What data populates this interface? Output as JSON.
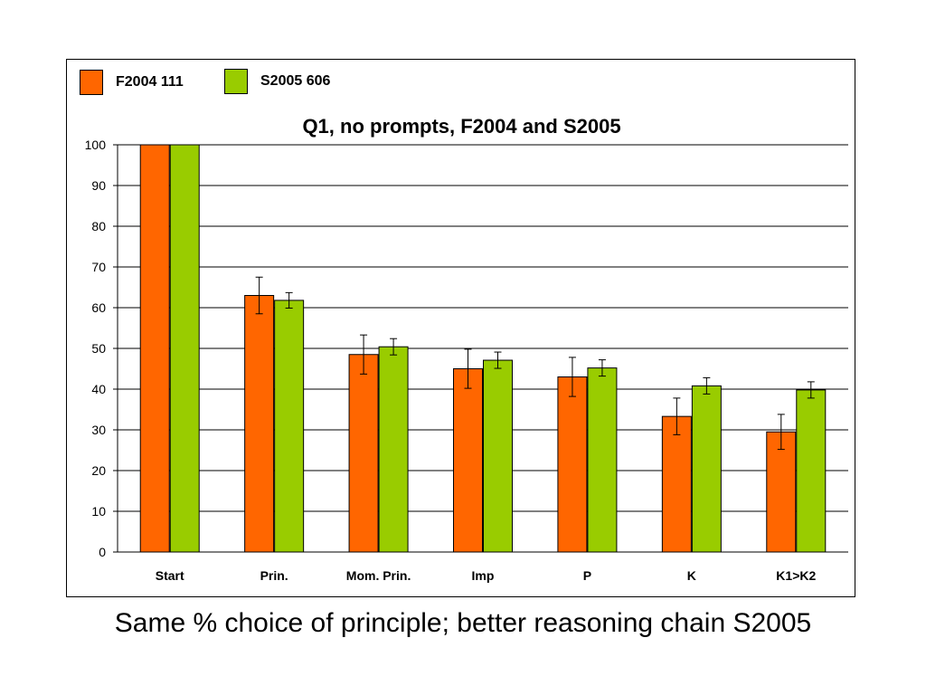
{
  "caption": "Same % choice of principle; better reasoning chain S2005",
  "chart_data": {
    "type": "bar",
    "title": "Q1, no prompts, F2004 and S2005",
    "xlabel": "",
    "ylabel": "",
    "ylim": [
      0,
      100
    ],
    "yticks": [
      0,
      10,
      20,
      30,
      40,
      50,
      60,
      70,
      80,
      90,
      100
    ],
    "grid": true,
    "legend_position": "top-left",
    "categories": [
      "Start",
      "Prin.",
      "Mom. Prin.",
      "Imp",
      "P",
      "K",
      "K1>K2"
    ],
    "series": [
      {
        "name": "F2004 111",
        "color": "#ff6600",
        "values": [
          100,
          63,
          48.5,
          45,
          43,
          33.3,
          29.5
        ],
        "error": [
          0,
          4.5,
          4.8,
          4.8,
          4.8,
          4.5,
          4.3
        ]
      },
      {
        "name": "S2005 606",
        "color": "#99cc00",
        "values": [
          100,
          61.8,
          50.4,
          47.1,
          45.2,
          40.8,
          39.8
        ],
        "error": [
          0,
          1.9,
          2.0,
          2.0,
          2.0,
          2.0,
          2.0
        ]
      }
    ]
  }
}
